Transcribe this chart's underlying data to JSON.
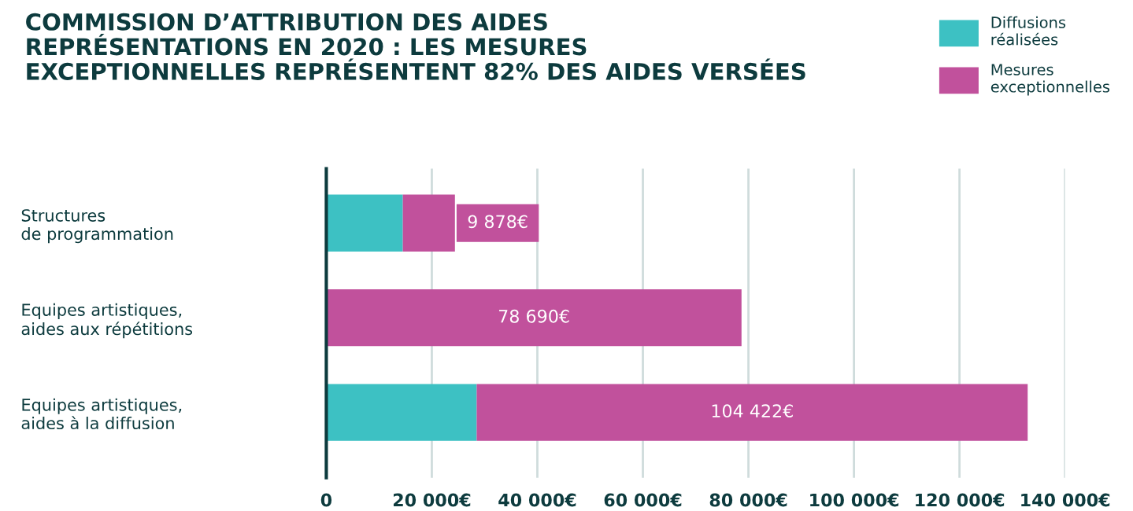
{
  "chart_data": {
    "type": "bar",
    "orientation": "horizontal",
    "stacked": true,
    "title": "COMMISSION D’ATTRIBUTION DES AIDES\nREPRÉSENTATIONS EN 2020 : LES MESURES\nEXCEPTIONNELLES REPRÉSENTENT 82% DES AIDES VERSÉES",
    "categories": [
      "Structures\nde programmation",
      "Equipes artistiques,\naides aux répétitions",
      "Equipes artistiques,\naides à la diffusion"
    ],
    "series": [
      {
        "name": "Diffusions\nréalisées",
        "color": "#3dc1c3",
        "values": [
          14500,
          0,
          28500
        ]
      },
      {
        "name": "Mesures\nexceptionnelles",
        "color": "#c1519c",
        "values": [
          9878,
          78690,
          104422
        ],
        "value_labels": [
          "9 878€",
          "78 690€",
          "104 422€"
        ]
      }
    ],
    "xlim": [
      0,
      140000
    ],
    "xticks": [
      {
        "value": 0,
        "label": "0"
      },
      {
        "value": 20000,
        "label": "20 000€"
      },
      {
        "value": 40000,
        "label": "40 000€"
      },
      {
        "value": 60000,
        "label": "60 000€"
      },
      {
        "value": 80000,
        "label": "80 000€"
      },
      {
        "value": 100000,
        "label": "100 000€"
      },
      {
        "value": 120000,
        "label": "120 000€"
      },
      {
        "value": 140000,
        "label": "140 000€"
      }
    ],
    "grid": "x",
    "legend": "top right"
  }
}
